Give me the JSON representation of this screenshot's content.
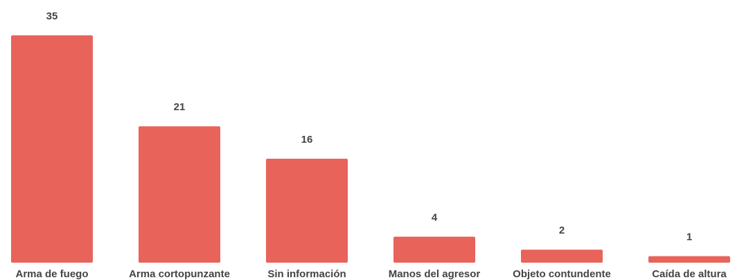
{
  "chart_data": {
    "type": "bar",
    "categories": [
      "Arma de fuego",
      "Arma cortopunzante",
      "Sin información",
      "Manos del agresor",
      "Objeto contundente",
      "Caída de altura"
    ],
    "values": [
      35,
      21,
      16,
      4,
      2,
      1
    ],
    "color": "#e8635a"
  }
}
